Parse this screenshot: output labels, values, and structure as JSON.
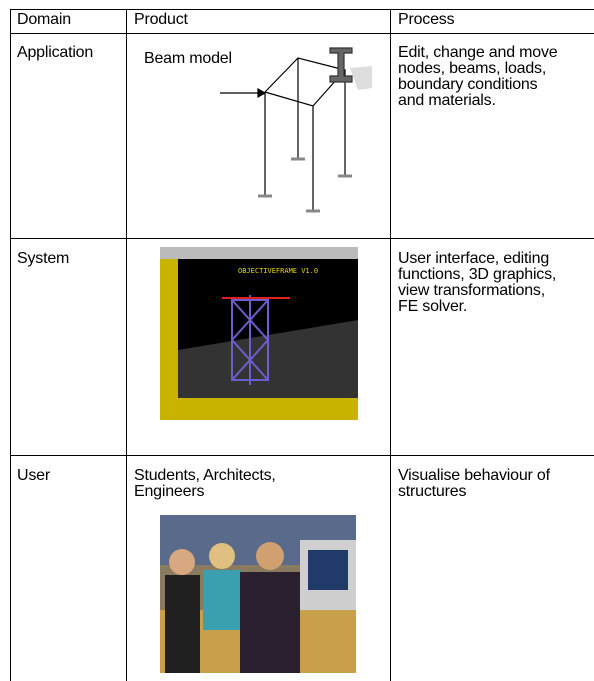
{
  "table": {
    "header": [
      "Domain",
      "Product",
      "Process"
    ],
    "rows": [
      {
        "domain": "Application",
        "product_label": "Beam model",
        "process": [
          "Edit, change and move",
          "nodes, beams, loads,",
          "boundary conditions",
          "and materials."
        ]
      },
      {
        "domain": "System",
        "screenshot_title": "OBJECTIVEFRAME V1.0",
        "process": [
          "User interface, editing",
          "functions, 3D graphics,",
          "view transformations,",
          "FE solver."
        ]
      },
      {
        "domain": "User",
        "product": [
          "Students, Architects,",
          "Engineers"
        ],
        "process": [
          "Visualise behaviour of",
          "structures"
        ]
      }
    ]
  }
}
